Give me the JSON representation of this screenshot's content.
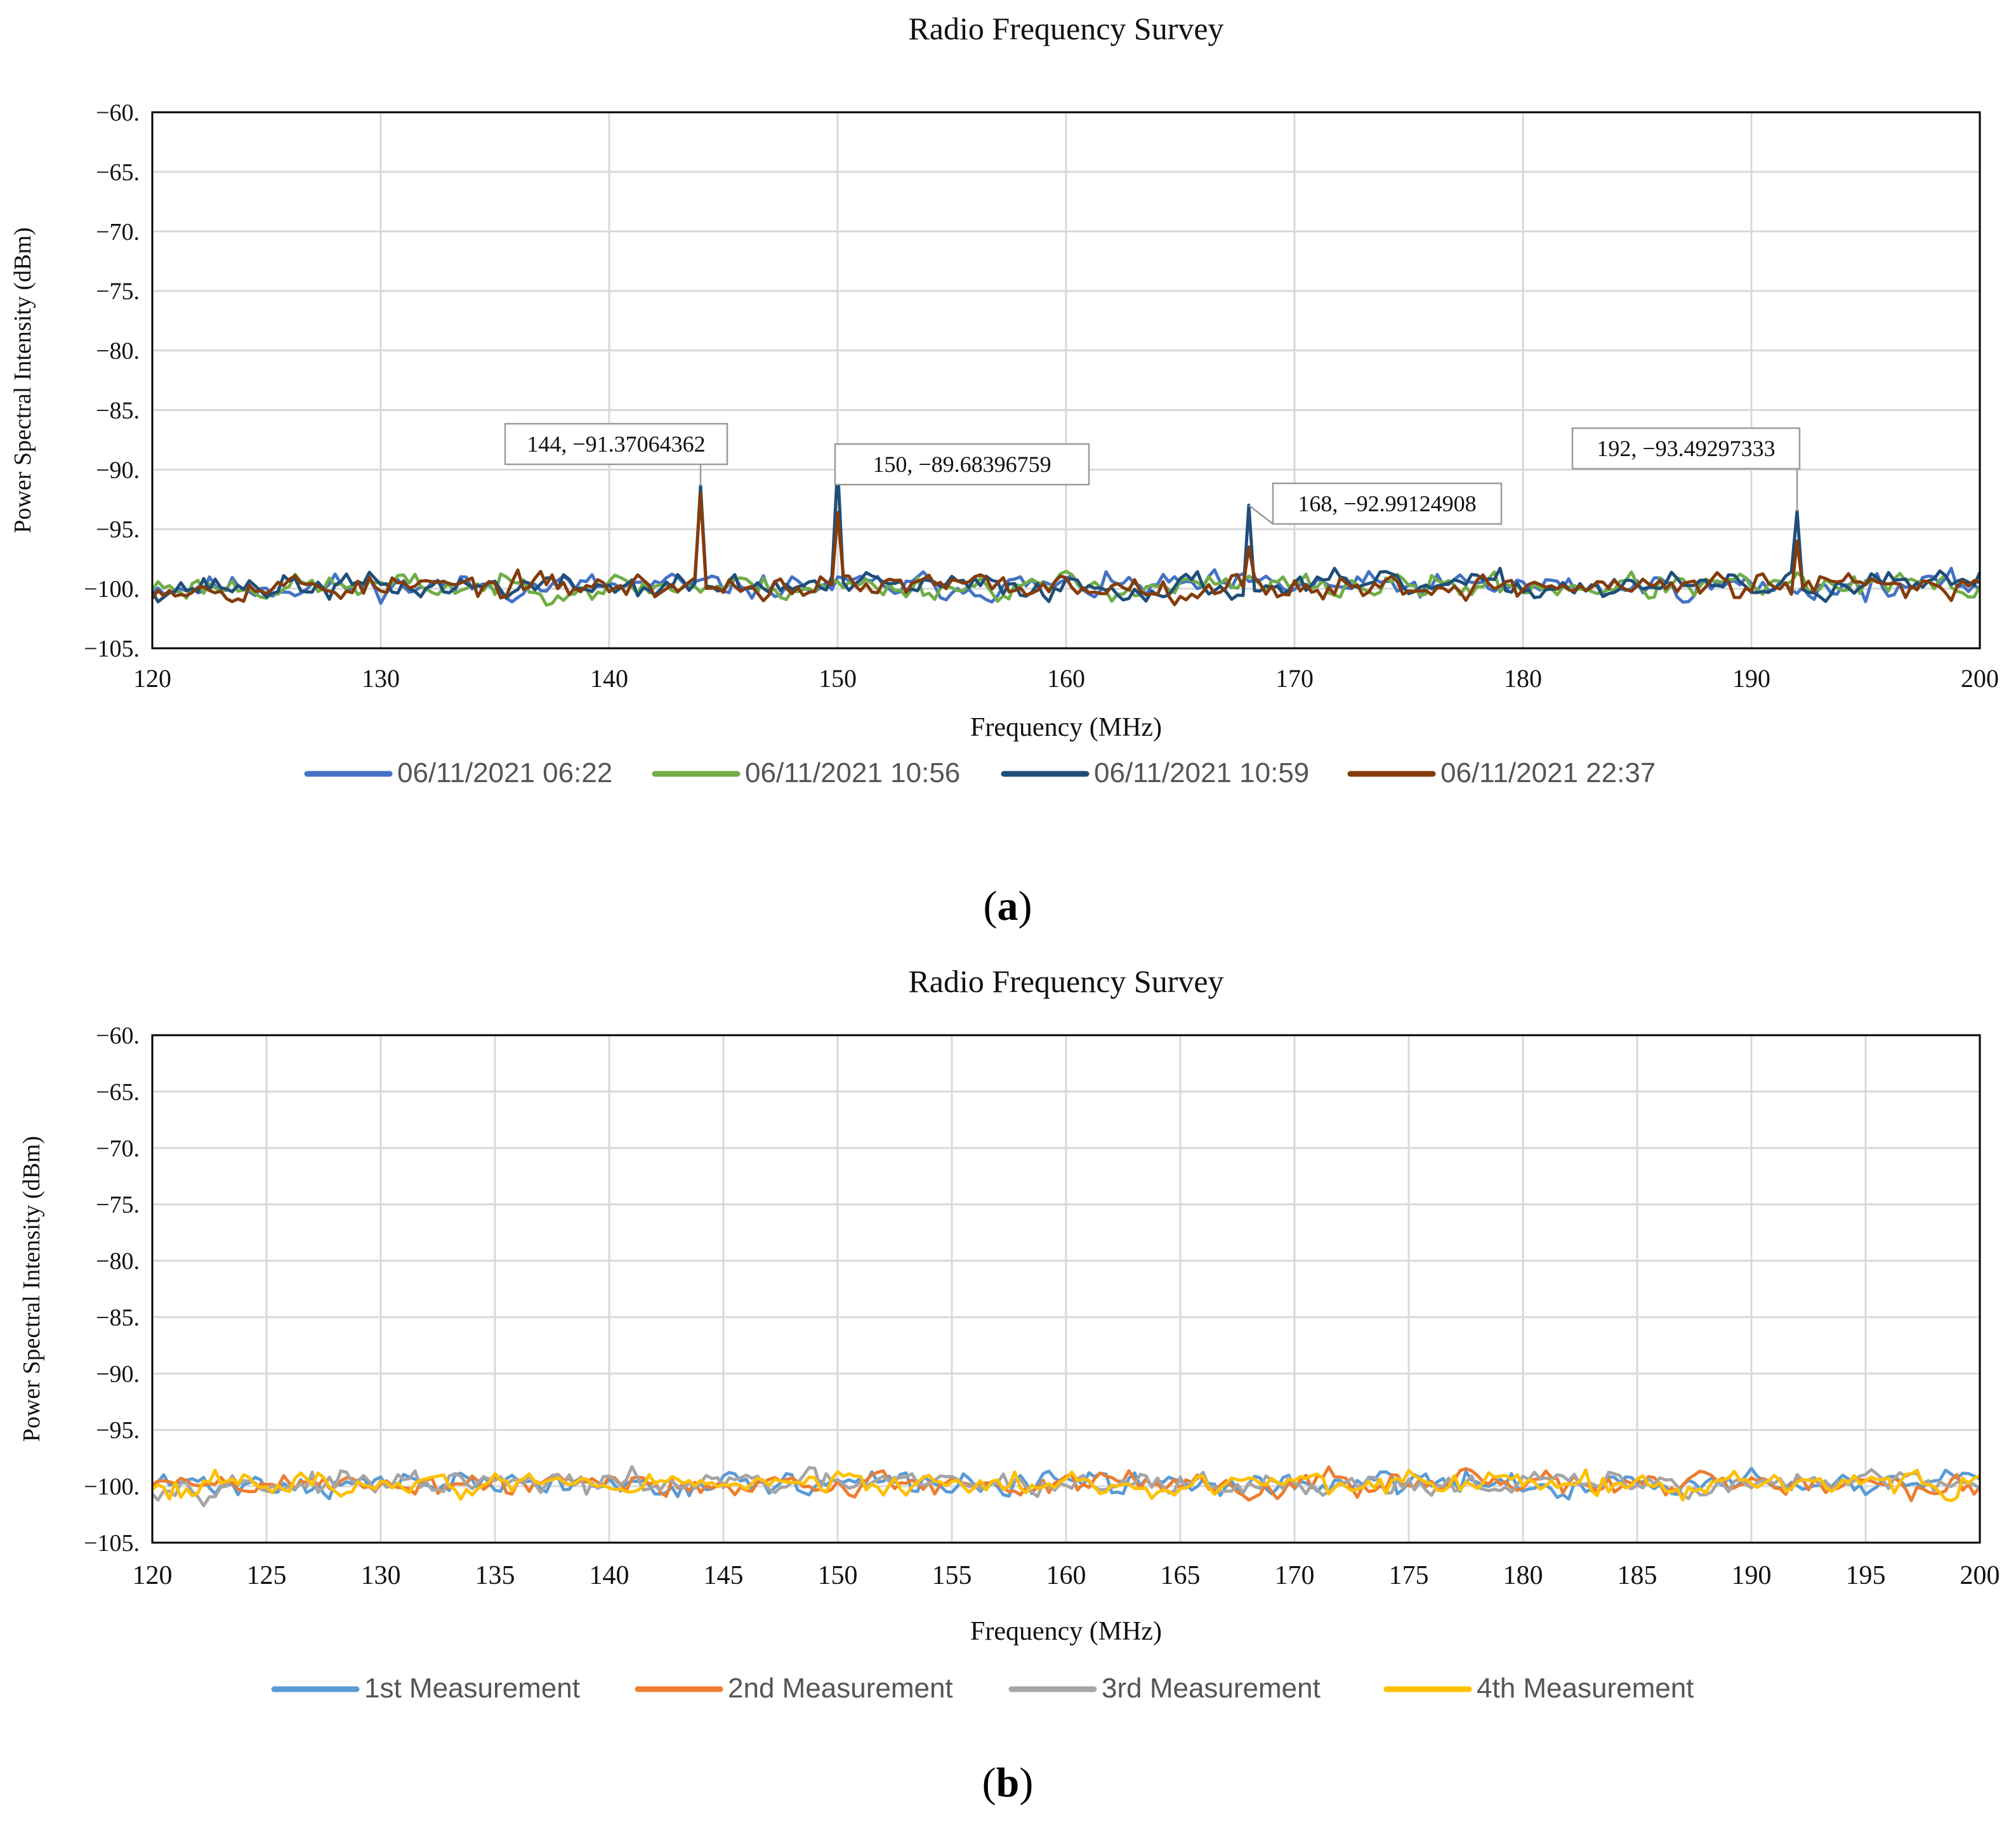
{
  "figure": {
    "panels": [
      {
        "label": "(a)",
        "letter": "a"
      },
      {
        "label": "(b)",
        "letter": "b"
      }
    ]
  },
  "chart_data": [
    {
      "type": "line",
      "title": "Radio Frequency Survey",
      "xlabel": "Frequency (MHz)",
      "ylabel": "Power Spectral Intensity (dBm)",
      "xlim": [
        120,
        200
      ],
      "ylim": [
        -105,
        -60
      ],
      "xticks": [
        120,
        130,
        140,
        150,
        160,
        170,
        180,
        190,
        200
      ],
      "xtick_labels": [
        "120",
        "130",
        "140",
        "150",
        "160",
        "170",
        "180",
        "190",
        "200"
      ],
      "yticks": [
        -60,
        -65,
        -70,
        -75,
        -80,
        -85,
        -90,
        -95,
        -100,
        -105
      ],
      "ytick_labels": [
        "−60.",
        "−65.",
        "−70.",
        "−75.",
        "−80.",
        "−85.",
        "−90.",
        "−95.",
        "−100.",
        "−105."
      ],
      "grid": true,
      "legend_position": "bottom",
      "x_step": 0.25,
      "noise": {
        "mean": -99.8,
        "spread": 1.1
      },
      "series": [
        {
          "name": "06/11/2021 06:22",
          "color": "#4472C4",
          "seed": 11,
          "peaks": []
        },
        {
          "name": "06/11/2021 10:56",
          "color": "#70AD47",
          "seed": 23,
          "peaks": []
        },
        {
          "name": "06/11/2021 10:59",
          "color": "#1F4E79",
          "seed": 37,
          "peaks": [
            {
              "x": 144,
              "y": -91.37064362
            },
            {
              "x": 150,
              "y": -89.68396759
            },
            {
              "x": 168,
              "y": -92.99124908
            },
            {
              "x": 192,
              "y": -93.49297333
            }
          ]
        },
        {
          "name": "06/11/2021 22:37",
          "color": "#843C0C",
          "seed": 53,
          "peaks": [
            {
              "x": 144,
              "y": -92.0
            },
            {
              "x": 150,
              "y": -93.6
            },
            {
              "x": 168,
              "y": -96.5
            },
            {
              "x": 192,
              "y": -96.0
            }
          ]
        }
      ],
      "annotations": [
        {
          "text": "144, −91.37064362",
          "x": 144,
          "y": -91.37064362
        },
        {
          "text": "150, −89.68396759",
          "x": 150,
          "y": -89.68396759
        },
        {
          "text": "168, −92.99124908",
          "x": 168,
          "y": -92.99124908
        },
        {
          "text": "192, −93.49297333",
          "x": 192,
          "y": -93.49297333
        }
      ]
    },
    {
      "type": "line",
      "title": "Radio Frequency Survey",
      "xlabel": "Frequency (MHz)",
      "ylabel": "Power Spectral Intensity (dBm)",
      "xlim": [
        120,
        200
      ],
      "ylim": [
        -105,
        -60
      ],
      "xticks": [
        120,
        125,
        130,
        135,
        140,
        145,
        150,
        155,
        160,
        165,
        170,
        175,
        180,
        185,
        190,
        195,
        200
      ],
      "xtick_labels": [
        "120",
        "125",
        "130",
        "135",
        "140",
        "145",
        "150",
        "155",
        "160",
        "165",
        "170",
        "175",
        "180",
        "185",
        "190",
        "195",
        "200"
      ],
      "yticks": [
        -60,
        -65,
        -70,
        -75,
        -80,
        -85,
        -90,
        -95,
        -100,
        -105
      ],
      "ytick_labels": [
        "−60.",
        "−65.",
        "−70.",
        "−75.",
        "−80.",
        "−85.",
        "−90.",
        "−95.",
        "−100.",
        "−105."
      ],
      "grid": true,
      "legend_position": "bottom",
      "x_step": 0.25,
      "noise": {
        "mean": -99.8,
        "spread": 1.1
      },
      "series": [
        {
          "name": "1st Measurement",
          "color": "#5B9BD5",
          "seed": 71,
          "peaks": []
        },
        {
          "name": "2nd Measurement",
          "color": "#ED7D31",
          "seed": 89,
          "peaks": []
        },
        {
          "name": "3rd Measurement",
          "color": "#A5A5A5",
          "seed": 97,
          "peaks": []
        },
        {
          "name": "4th Measurement",
          "color": "#FFC000",
          "seed": 113,
          "peaks": []
        }
      ],
      "annotations": []
    }
  ]
}
